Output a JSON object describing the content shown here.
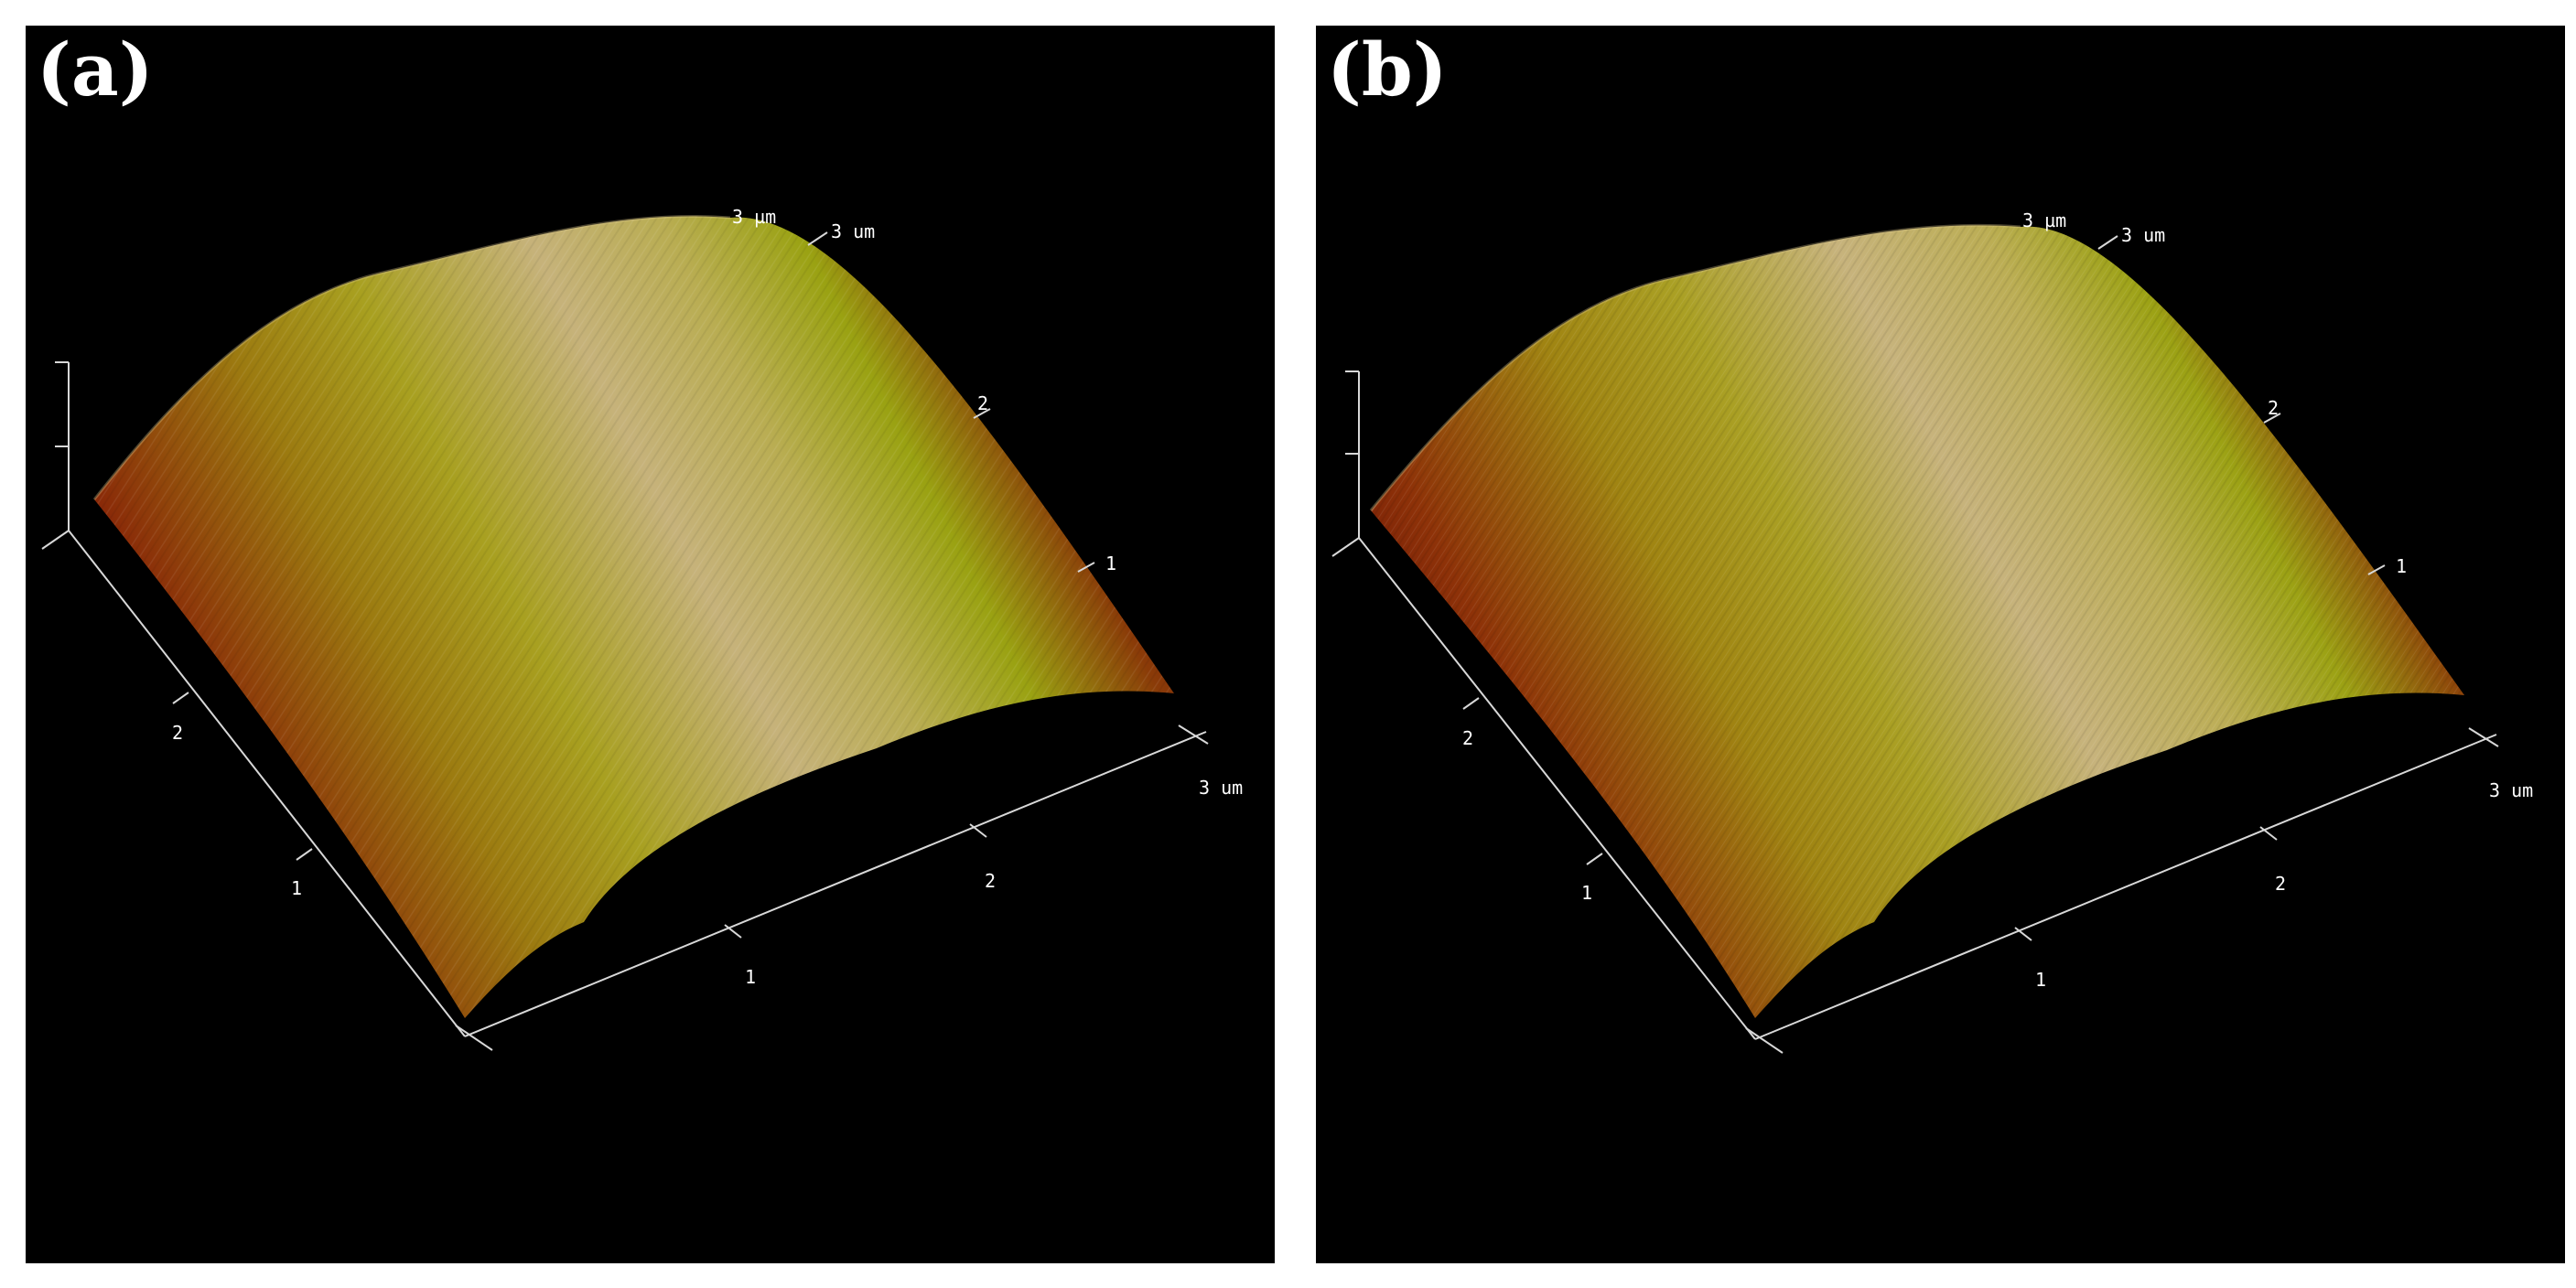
{
  "panels": [
    {
      "label": "(a)",
      "top_labels": [
        "3 µm",
        "3 um"
      ],
      "right_ticks": [
        "2",
        "1"
      ],
      "front_ticks": [
        "1",
        "2",
        "3 um"
      ],
      "left_ticks": [
        "2",
        "1"
      ]
    },
    {
      "label": "(b)",
      "top_labels": [
        "3 µm",
        "3 um"
      ],
      "right_ticks": [
        "2",
        "1"
      ],
      "front_ticks": [
        "1",
        "2",
        "3 um"
      ],
      "left_ticks": [
        "2",
        "1"
      ]
    }
  ],
  "colors": {
    "background": "#000000",
    "surface_dark": "#6e0f06",
    "surface_mid": "#9a8a14",
    "surface_light": "#c9b67a"
  }
}
